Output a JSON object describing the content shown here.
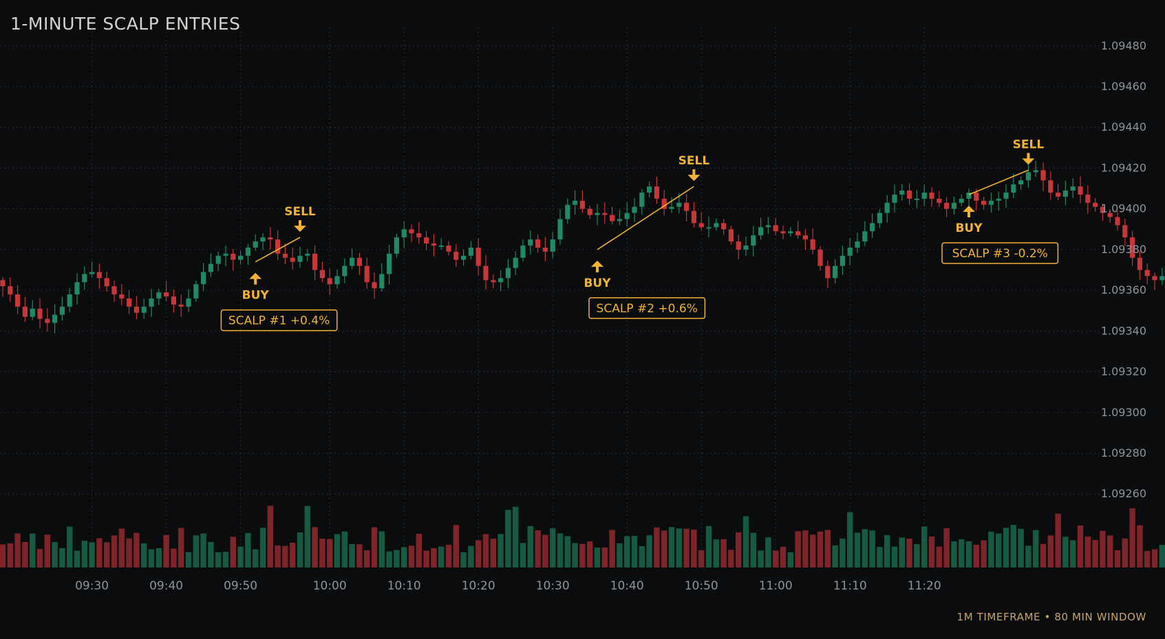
{
  "header": {
    "title": "1-MINUTE SCALP ENTRIES"
  },
  "footer": {
    "text": "1M TIMEFRAME • 80 MIN WINDOW"
  },
  "colors": {
    "background": "#0a0c0e",
    "up": "#1f8a63",
    "down": "#c8363a",
    "accent": "#f2b233",
    "grid": "#2a2e33",
    "axis_text": "#8f9499"
  },
  "chart_data": {
    "type": "candlestick",
    "title": "1-MINUTE SCALP ENTRIES",
    "y_ticks": [
      "1.09480",
      "1.09460",
      "1.09440",
      "1.09420",
      "1.09400",
      "1.09380",
      "1.09360",
      "1.09340",
      "1.09320",
      "1.09300",
      "1.09280",
      "1.09260"
    ],
    "ylim": [
      1.09255,
      1.09485
    ],
    "x_ticks": [
      "09:30",
      "09:40",
      "09:50",
      "10:00",
      "10:10",
      "10:20",
      "10:30",
      "10:40",
      "10:50",
      "11:00",
      "11:10",
      "11:20"
    ],
    "x_tick_index": [
      12,
      22,
      32,
      44,
      54,
      64,
      74,
      84,
      94,
      104,
      114,
      124
    ],
    "grid": true,
    "volume_panel": true,
    "close": [
      1.09362,
      1.09358,
      1.09352,
      1.09347,
      1.09351,
      1.09346,
      1.09344,
      1.09348,
      1.09352,
      1.09358,
      1.09364,
      1.09368,
      1.09369,
      1.09366,
      1.09362,
      1.09358,
      1.09356,
      1.09352,
      1.09349,
      1.09352,
      1.09356,
      1.09359,
      1.09357,
      1.09353,
      1.09352,
      1.09356,
      1.09363,
      1.09369,
      1.09373,
      1.09377,
      1.09378,
      1.09375,
      1.09377,
      1.09381,
      1.09384,
      1.09386,
      1.09385,
      1.09378,
      1.09376,
      1.09374,
      1.09377,
      1.09378,
      1.0937,
      1.09366,
      1.09363,
      1.09367,
      1.09372,
      1.09376,
      1.09372,
      1.09364,
      1.09361,
      1.09368,
      1.09378,
      1.09386,
      1.0939,
      1.09388,
      1.09386,
      1.09383,
      1.09382,
      1.09382,
      1.09379,
      1.09375,
      1.09377,
      1.09381,
      1.09372,
      1.09365,
      1.09364,
      1.09366,
      1.09371,
      1.09376,
      1.09382,
      1.09385,
      1.09381,
      1.09379,
      1.09385,
      1.09395,
      1.09402,
      1.09404,
      1.094,
      1.09397,
      1.09398,
      1.09397,
      1.09394,
      1.09395,
      1.09398,
      1.09401,
      1.09408,
      1.09411,
      1.09405,
      1.094,
      1.09401,
      1.09403,
      1.09399,
      1.09393,
      1.09391,
      1.09391,
      1.09393,
      1.0939,
      1.09384,
      1.0938,
      1.09382,
      1.09387,
      1.09391,
      1.09392,
      1.09389,
      1.09388,
      1.09389,
      1.09387,
      1.09385,
      1.0938,
      1.09372,
      1.09366,
      1.09372,
      1.09377,
      1.09381,
      1.09384,
      1.09389,
      1.09393,
      1.09398,
      1.09403,
      1.09407,
      1.09409,
      1.09405,
      1.09405,
      1.09408,
      1.09405,
      1.09403,
      1.094,
      1.09403,
      1.09405,
      1.09408,
      1.09404,
      1.09402,
      1.09404,
      1.09405,
      1.09408,
      1.09412,
      1.09414,
      1.09418,
      1.09419,
      1.09414,
      1.09408,
      1.09406,
      1.09409,
      1.09411,
      1.09407,
      1.09403,
      1.09401,
      1.09398,
      1.09396,
      1.09392,
      1.09386,
      1.09376,
      1.0937,
      1.09367,
      1.09365,
      1.09367,
      1.09371,
      1.09366,
      1.09361,
      1.09355,
      1.09352
    ],
    "annotations": [
      {
        "buy_label": "BUY",
        "sell_label": "SELL",
        "trade_label": "SCALP #1 +0.4%",
        "buy_index": 34,
        "sell_index": 40,
        "buy_price": 1.09374,
        "sell_price": 1.09386
      },
      {
        "buy_label": "BUY",
        "sell_label": "SELL",
        "trade_label": "SCALP #2 +0.6%",
        "buy_index": 80,
        "sell_index": 93,
        "buy_price": 1.0938,
        "sell_price": 1.09411
      },
      {
        "buy_label": "BUY",
        "sell_label": "SELL",
        "trade_label": "SCALP #3 -0.2%",
        "buy_index": 130,
        "sell_index": 138,
        "buy_price": 1.09407,
        "sell_price": 1.09419
      }
    ]
  }
}
